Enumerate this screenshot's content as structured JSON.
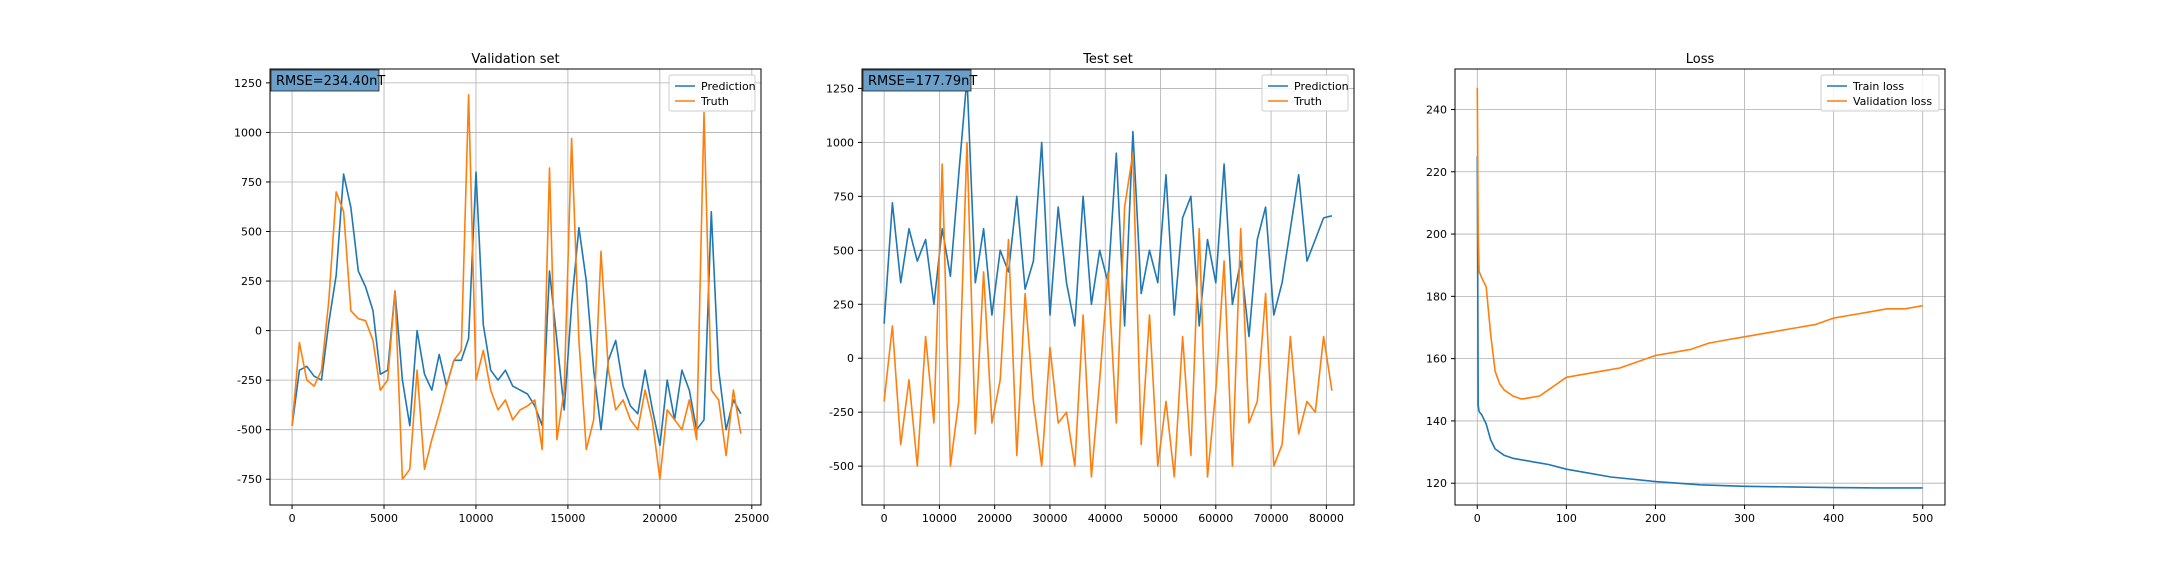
{
  "colors": {
    "prediction": "#1f77b4",
    "truth": "#ff7f0e",
    "grid": "#b0b0b0",
    "rmse_box": "#6a9fc9"
  },
  "chart_data": [
    {
      "type": "line",
      "title": "Validation set",
      "xlabel": "",
      "ylabel": "",
      "xlim": [
        -1200,
        25500
      ],
      "ylim": [
        -880,
        1320
      ],
      "xticks": [
        0,
        5000,
        10000,
        15000,
        20000,
        25000
      ],
      "yticks": [
        -750,
        -500,
        -250,
        0,
        250,
        500,
        750,
        1000,
        1250
      ],
      "grid": true,
      "legend": "top-right",
      "annotation": "RMSE=234.40nT",
      "series": [
        {
          "name": "Prediction",
          "color": "#1f77b4",
          "x": [
            0,
            400,
            800,
            1200,
            1600,
            2000,
            2400,
            2800,
            3200,
            3600,
            4000,
            4400,
            4800,
            5200,
            5600,
            6000,
            6400,
            6800,
            7200,
            7600,
            8000,
            8400,
            8800,
            9200,
            9600,
            10000,
            10400,
            10800,
            11200,
            11600,
            12000,
            12400,
            12800,
            13200,
            13600,
            14000,
            14400,
            14800,
            15200,
            15600,
            16000,
            16400,
            16800,
            17200,
            17600,
            18000,
            18400,
            18800,
            19200,
            19600,
            20000,
            20400,
            20800,
            21200,
            21600,
            22000,
            22400,
            22800,
            23200,
            23600,
            24000,
            24400
          ],
          "y": [
            -480,
            -200,
            -180,
            -230,
            -250,
            40,
            280,
            790,
            620,
            300,
            220,
            100,
            -220,
            -200,
            200,
            -250,
            -480,
            0,
            -220,
            -300,
            -120,
            -280,
            -150,
            -150,
            -40,
            800,
            30,
            -200,
            -250,
            -200,
            -280,
            -300,
            -320,
            -380,
            -480,
            300,
            -50,
            -400,
            130,
            520,
            250,
            -200,
            -500,
            -150,
            -50,
            -280,
            -380,
            -420,
            -200,
            -400,
            -580,
            -250,
            -450,
            -200,
            -300,
            -500,
            -450,
            600,
            -200,
            -500,
            -350,
            -420
          ]
        },
        {
          "name": "Truth",
          "color": "#ff7f0e",
          "x": [
            0,
            400,
            800,
            1200,
            1600,
            2000,
            2400,
            2800,
            3200,
            3600,
            4000,
            4400,
            4800,
            5200,
            5600,
            6000,
            6400,
            6800,
            7200,
            7600,
            8000,
            8400,
            8800,
            9200,
            9600,
            10000,
            10400,
            10800,
            11200,
            11600,
            12000,
            12400,
            12800,
            13200,
            13600,
            14000,
            14400,
            14800,
            15200,
            15600,
            16000,
            16400,
            16800,
            17200,
            17600,
            18000,
            18400,
            18800,
            19200,
            19600,
            20000,
            20400,
            20800,
            21200,
            21600,
            22000,
            22400,
            22800,
            23200,
            23600,
            24000,
            24400
          ],
          "y": [
            -480,
            -60,
            -250,
            -280,
            -200,
            150,
            700,
            600,
            100,
            60,
            50,
            -50,
            -300,
            -250,
            200,
            -750,
            -700,
            -200,
            -700,
            -550,
            -420,
            -280,
            -150,
            -100,
            1190,
            -250,
            -100,
            -300,
            -400,
            -350,
            -450,
            -400,
            -380,
            -350,
            -600,
            820,
            -550,
            -300,
            970,
            -50,
            -600,
            -450,
            400,
            -200,
            -400,
            -350,
            -450,
            -500,
            -300,
            -460,
            -750,
            -400,
            -450,
            -500,
            -350,
            -550,
            1100,
            -300,
            -350,
            -630,
            -300,
            -520
          ]
        }
      ]
    },
    {
      "type": "line",
      "title": "Test set",
      "xlabel": "",
      "ylabel": "",
      "xlim": [
        -4000,
        85000
      ],
      "ylim": [
        -680,
        1340
      ],
      "xticks": [
        0,
        10000,
        20000,
        30000,
        40000,
        50000,
        60000,
        70000,
        80000
      ],
      "yticks": [
        -500,
        -250,
        0,
        250,
        500,
        750,
        1000,
        1250
      ],
      "grid": true,
      "legend": "top-right",
      "annotation": "RMSE=177.79nT",
      "series": [
        {
          "name": "Prediction",
          "color": "#1f77b4",
          "x": [
            0,
            1500,
            3000,
            4500,
            6000,
            7500,
            9000,
            10500,
            12000,
            13500,
            15000,
            16500,
            18000,
            19500,
            21000,
            22500,
            24000,
            25500,
            27000,
            28500,
            30000,
            31500,
            33000,
            34500,
            36000,
            37500,
            39000,
            40500,
            42000,
            43500,
            45000,
            46500,
            48000,
            49500,
            51000,
            52500,
            54000,
            55500,
            57000,
            58500,
            60000,
            61500,
            63000,
            64500,
            66000,
            67500,
            69000,
            70500,
            72000,
            73500,
            75000,
            76500,
            78000,
            79500,
            81000
          ],
          "y": [
            160,
            720,
            350,
            600,
            450,
            550,
            250,
            600,
            380,
            850,
            1300,
            350,
            600,
            200,
            500,
            400,
            750,
            320,
            450,
            1000,
            200,
            700,
            350,
            150,
            750,
            250,
            500,
            350,
            950,
            150,
            1050,
            300,
            500,
            350,
            850,
            200,
            650,
            750,
            150,
            550,
            350,
            900,
            250,
            450,
            100,
            550,
            700,
            200,
            350,
            600,
            850,
            450,
            550,
            650,
            660
          ]
        },
        {
          "name": "Truth",
          "color": "#ff7f0e",
          "x": [
            0,
            1500,
            3000,
            4500,
            6000,
            7500,
            9000,
            10500,
            12000,
            13500,
            15000,
            16500,
            18000,
            19500,
            21000,
            22500,
            24000,
            25500,
            27000,
            28500,
            30000,
            31500,
            33000,
            34500,
            36000,
            37500,
            39000,
            40500,
            42000,
            43500,
            45000,
            46500,
            48000,
            49500,
            51000,
            52500,
            54000,
            55500,
            57000,
            58500,
            60000,
            61500,
            63000,
            64500,
            66000,
            67500,
            69000,
            70500,
            72000,
            73500,
            75000,
            76500,
            78000,
            79500,
            81000
          ],
          "y": [
            -200,
            150,
            -400,
            -100,
            -500,
            100,
            -300,
            900,
            -500,
            -200,
            1000,
            -350,
            400,
            -300,
            -100,
            550,
            -450,
            300,
            -200,
            -500,
            50,
            -300,
            -250,
            -500,
            200,
            -550,
            -100,
            400,
            -300,
            700,
            950,
            -400,
            200,
            -500,
            -200,
            -550,
            100,
            -450,
            600,
            -550,
            -150,
            450,
            -500,
            600,
            -300,
            -200,
            300,
            -500,
            -400,
            100,
            -350,
            -200,
            -250,
            100,
            -150
          ]
        }
      ]
    },
    {
      "type": "line",
      "title": "Loss",
      "xlabel": "",
      "ylabel": "",
      "xlim": [
        -25,
        525
      ],
      "ylim": [
        113,
        253
      ],
      "xticks": [
        0,
        100,
        200,
        300,
        400,
        500
      ],
      "yticks": [
        120,
        140,
        160,
        180,
        200,
        220,
        240
      ],
      "grid": true,
      "legend": "top-right",
      "series": [
        {
          "name": "Train loss",
          "color": "#1f77b4",
          "x": [
            0,
            1,
            2,
            5,
            10,
            15,
            20,
            30,
            40,
            60,
            80,
            100,
            120,
            150,
            200,
            250,
            300,
            350,
            400,
            450,
            500
          ],
          "y": [
            225,
            145,
            143,
            142,
            139,
            134,
            131,
            129,
            128,
            127,
            126,
            124.5,
            123.5,
            122,
            120.5,
            119.5,
            119,
            118.8,
            118.6,
            118.5,
            118.5
          ]
        },
        {
          "name": "Validation loss",
          "color": "#ff7f0e",
          "x": [
            0,
            1,
            2,
            5,
            10,
            15,
            20,
            25,
            30,
            40,
            50,
            60,
            70,
            80,
            90,
            100,
            120,
            140,
            160,
            180,
            200,
            220,
            240,
            260,
            280,
            300,
            320,
            340,
            360,
            380,
            400,
            420,
            440,
            460,
            480,
            500
          ],
          "y": [
            247,
            200,
            188,
            186,
            183,
            168,
            156,
            152,
            150,
            148,
            147,
            147.5,
            148,
            150,
            152,
            154,
            155,
            156,
            157,
            159,
            161,
            162,
            163,
            165,
            166,
            167,
            168,
            169,
            170,
            171,
            173,
            174,
            175,
            176,
            176,
            177
          ]
        }
      ]
    }
  ]
}
